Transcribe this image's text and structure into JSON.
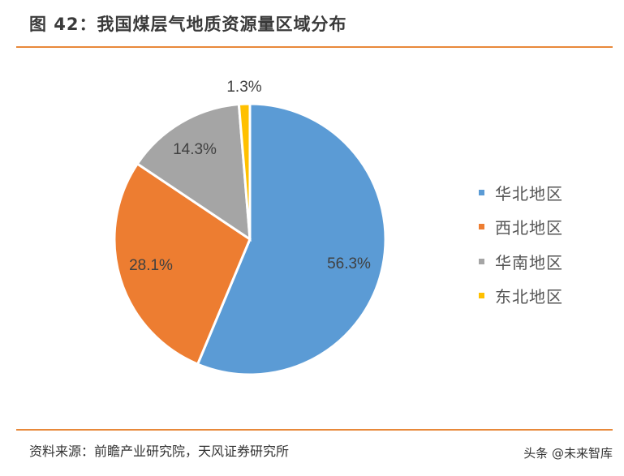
{
  "header": {
    "title": "图 42：我国煤层气地质资源量区域分布"
  },
  "footer": {
    "source": "资料来源：前瞻产业研究院，天风证券研究所",
    "watermark": "头条 @未来智库"
  },
  "colors": {
    "accent_rule": "#e8893a"
  },
  "legend": {
    "items": [
      {
        "label": "华北地区",
        "color": "#5b9bd5"
      },
      {
        "label": "西北地区",
        "color": "#ed7d31"
      },
      {
        "label": "华南地区",
        "color": "#a5a5a5"
      },
      {
        "label": "东北地区",
        "color": "#ffc000"
      }
    ]
  },
  "chart_data": {
    "type": "pie",
    "title": "我国煤层气地质资源量区域分布",
    "categories": [
      "华北地区",
      "西北地区",
      "华南地区",
      "东北地区"
    ],
    "values": [
      56.3,
      28.1,
      14.3,
      1.3
    ],
    "labels": [
      "56.3%",
      "28.1%",
      "14.3%",
      "1.3%"
    ],
    "colors": [
      "#5b9bd5",
      "#ed7d31",
      "#a5a5a5",
      "#ffc000"
    ],
    "legend_position": "right",
    "start_angle": "12 o'clock, clockwise"
  }
}
